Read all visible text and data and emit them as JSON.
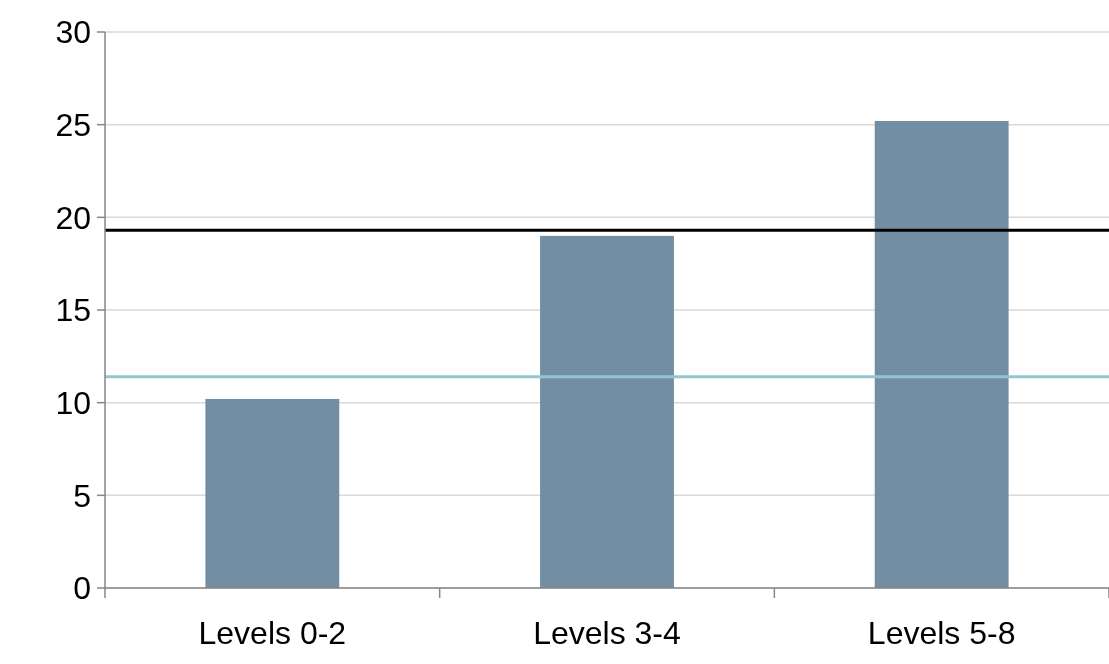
{
  "chart_data": {
    "type": "bar",
    "categories": [
      "Levels 0-2",
      "Levels 3-4",
      "Levels 5-8"
    ],
    "values": [
      10.2,
      19,
      25.2
    ],
    "color": "#728ea5",
    "ylim": [
      0,
      30
    ],
    "yticks": [
      0,
      5,
      10,
      15,
      20,
      25,
      30
    ],
    "grid": "y",
    "ref_lines": [
      {
        "axis": "y",
        "value": 19.3,
        "color": "#000000"
      },
      {
        "axis": "y",
        "value": 11.4,
        "color": "#92c7d0"
      }
    ]
  }
}
